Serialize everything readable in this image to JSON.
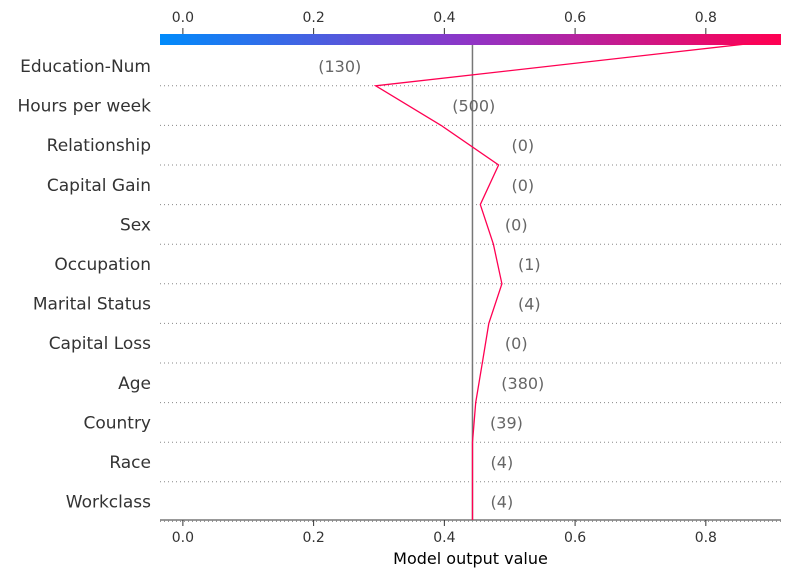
{
  "chart_data": {
    "type": "line",
    "title": "",
    "xlabel": "Model output value",
    "ylabel": "",
    "xlim": [
      -0.035,
      0.915
    ],
    "xticks": [
      "0.0",
      "0.2",
      "0.4",
      "0.6",
      "0.8"
    ],
    "xtick_values": [
      0.0,
      0.2,
      0.4,
      0.6,
      0.8
    ],
    "base_value": 0.443,
    "colorbar": {
      "from_color": "#008bfb",
      "mid_color": "#9034c6",
      "to_color": "#ff0052"
    },
    "line_color": "#ff0052",
    "grid": "dotted horizontal lines between features",
    "features": [
      {
        "name": "Education-Num",
        "value": "(130)",
        "output": 0.915,
        "label_x": 0.24
      },
      {
        "name": "Hours per week",
        "value": "(500)",
        "output": 0.295,
        "label_x": 0.445
      },
      {
        "name": "Relationship",
        "value": "(0)",
        "output": 0.395,
        "label_x": 0.52
      },
      {
        "name": "Capital Gain",
        "value": "(0)",
        "output": 0.483,
        "label_x": 0.52
      },
      {
        "name": "Sex",
        "value": "(0)",
        "output": 0.455,
        "label_x": 0.51
      },
      {
        "name": "Occupation",
        "value": "(1)",
        "output": 0.475,
        "label_x": 0.53
      },
      {
        "name": "Marital Status",
        "value": "(4)",
        "output": 0.488,
        "label_x": 0.53
      },
      {
        "name": "Capital Loss",
        "value": "(0)",
        "output": 0.468,
        "label_x": 0.51
      },
      {
        "name": "Age",
        "value": "(380)",
        "output": 0.458,
        "label_x": 0.52
      },
      {
        "name": "Country",
        "value": "(39)",
        "output": 0.448,
        "label_x": 0.495
      },
      {
        "name": "Race",
        "value": "(4)",
        "output": 0.443,
        "label_x": 0.488
      },
      {
        "name": "Workclass",
        "value": "(4)",
        "output": 0.443,
        "label_x": 0.488
      }
    ],
    "final_output": 0.443
  }
}
